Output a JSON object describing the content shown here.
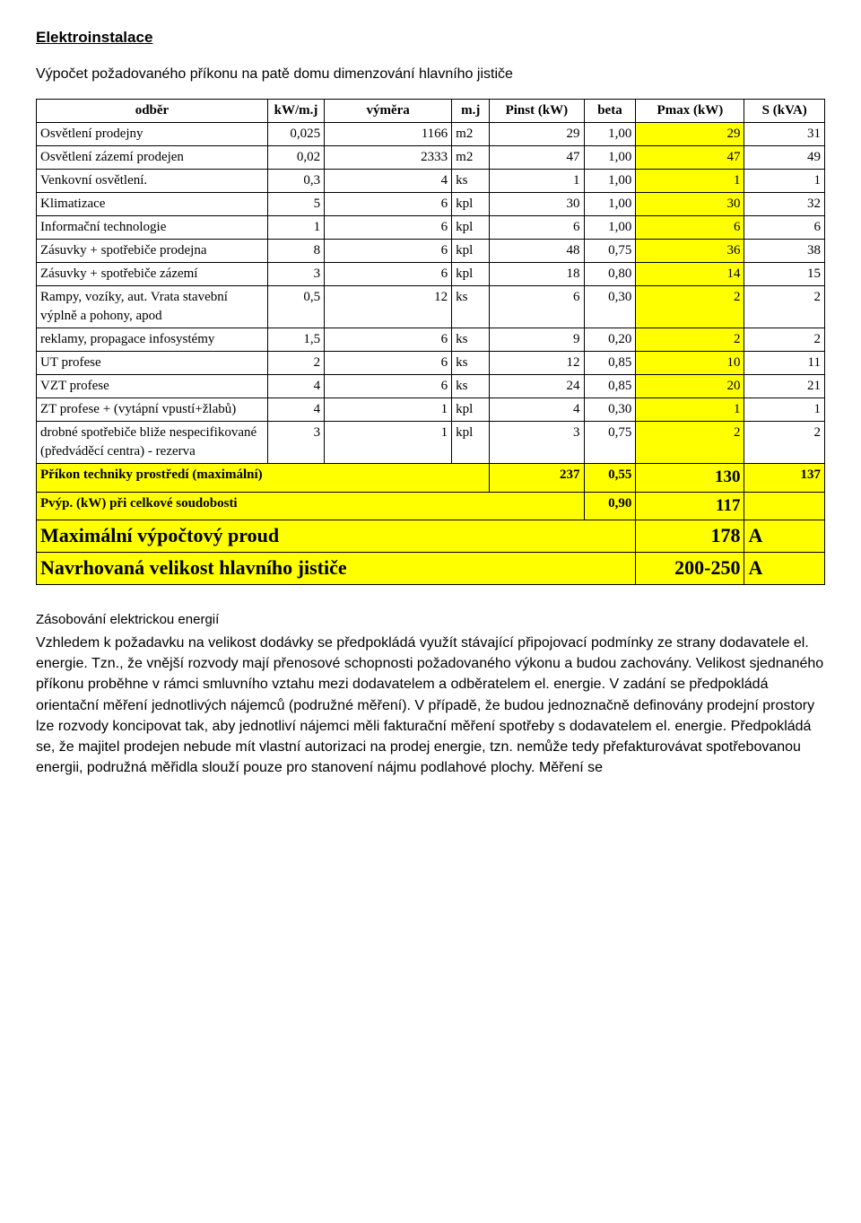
{
  "title": "Elektroinstalace",
  "subtitle": "Výpočet požadovaného příkonu na patě domu dimenzování hlavního jističe",
  "headers": {
    "odber": "odběr",
    "kwmj": "kW/m.j",
    "vymera": "výměra",
    "mj": "m.j",
    "pinst": "Pinst (kW)",
    "beta": "beta",
    "pmax": "Pmax (kW)",
    "skva": "S (kVA)"
  },
  "rows": [
    {
      "label": "Osvětlení prodejny",
      "kwmj": "0,025",
      "vymera": "1166",
      "mj": "m2",
      "pinst": "29",
      "beta": "1,00",
      "pmax": "29",
      "skva": "31"
    },
    {
      "label": "Osvětlení zázemí prodejen",
      "kwmj": "0,02",
      "vymera": "2333",
      "mj": "m2",
      "pinst": "47",
      "beta": "1,00",
      "pmax": "47",
      "skva": "49"
    },
    {
      "label": "Venkovní osvětlení.",
      "kwmj": "0,3",
      "vymera": "4",
      "mj": "ks",
      "pinst": "1",
      "beta": "1,00",
      "pmax": "1",
      "skva": "1"
    },
    {
      "label": "Klimatizace",
      "kwmj": "5",
      "vymera": "6",
      "mj": "kpl",
      "pinst": "30",
      "beta": "1,00",
      "pmax": "30",
      "skva": "32"
    },
    {
      "label": "Informační technologie",
      "kwmj": "1",
      "vymera": "6",
      "mj": "kpl",
      "pinst": "6",
      "beta": "1,00",
      "pmax": "6",
      "skva": "6"
    },
    {
      "label": "Zásuvky + spotřebiče prodejna",
      "kwmj": "8",
      "vymera": "6",
      "mj": "kpl",
      "pinst": "48",
      "beta": "0,75",
      "pmax": "36",
      "skva": "38"
    },
    {
      "label": "Zásuvky + spotřebiče zázemí",
      "kwmj": "3",
      "vymera": "6",
      "mj": "kpl",
      "pinst": "18",
      "beta": "0,80",
      "pmax": "14",
      "skva": "15"
    },
    {
      "label": "Rampy, vozíky, aut. Vrata stavební výplně a pohony, apod",
      "kwmj": "0,5",
      "vymera": "12",
      "mj": "ks",
      "pinst": "6",
      "beta": "0,30",
      "pmax": "2",
      "skva": "2"
    },
    {
      "label": "reklamy, propagace infosystémy",
      "kwmj": "1,5",
      "vymera": "6",
      "mj": "ks",
      "pinst": "9",
      "beta": "0,20",
      "pmax": "2",
      "skva": "2"
    },
    {
      "label": "UT profese",
      "kwmj": "2",
      "vymera": "6",
      "mj": "ks",
      "pinst": "12",
      "beta": "0,85",
      "pmax": "10",
      "skva": "11"
    },
    {
      "label": "VZT  profese",
      "kwmj": "4",
      "vymera": "6",
      "mj": "ks",
      "pinst": "24",
      "beta": "0,85",
      "pmax": "20",
      "skva": "21"
    },
    {
      "label": "ZT profese + (vytápní vpustí+žlabů)",
      "kwmj": "4",
      "vymera": "1",
      "mj": "kpl",
      "pinst": "4",
      "beta": "0,30",
      "pmax": "1",
      "skva": "1"
    },
    {
      "label": "drobné spotřebiče bliže nespecifikované (předváděcí centra) - rezerva",
      "kwmj": "3",
      "vymera": "1",
      "mj": "kpl",
      "pinst": "3",
      "beta": "0,75",
      "pmax": "2",
      "skva": "2"
    }
  ],
  "sumrows": {
    "prikon": {
      "label": "Příkon techniky prostředí (maximální)",
      "pinst": "237",
      "beta": "0,55",
      "pmax": "130",
      "skva": "137"
    },
    "pvyp": {
      "label": "Pvýp. (kW) při celkové soudobosti",
      "beta": "0,90",
      "pmax": "117"
    },
    "maxI": {
      "label": "Maximální výpočtový proud",
      "pmax": "178",
      "unit": "A"
    },
    "navrh": {
      "label": "Navrhovaná velikost hlavního jističe",
      "pmax": "200-250",
      "unit": "A"
    }
  },
  "para": {
    "h": "Zásobování elektrickou energií",
    "t": "Vzhledem k požadavku na velikost dodávky se předpokládá využít stávající připojovací podmínky ze strany dodavatele el. energie. Tzn., že vnější rozvody mají přenosové schopnosti požadovaného výkonu a budou zachovány. Velikost sjednaného příkonu proběhne v rámci smluvního vztahu mezi dodavatelem a odběratelem el. energie. V zadání se předpokládá orientační měření jednotlivých nájemců (podružné měření). V případě, že budou jednoznačně definovány prodejní prostory lze rozvody koncipovat tak, aby jednotliví nájemci měli fakturační měření spotřeby s dodavatelem el. energie. Předpokládá se, že majitel prodejen nebude mít vlastní autorizaci na prodej energie, tzn. nemůže tedy přefakturovávat spotřebovanou energii, podružná měřidla slouží pouze pro stanovení nájmu podlahové plochy. Měření se"
  }
}
